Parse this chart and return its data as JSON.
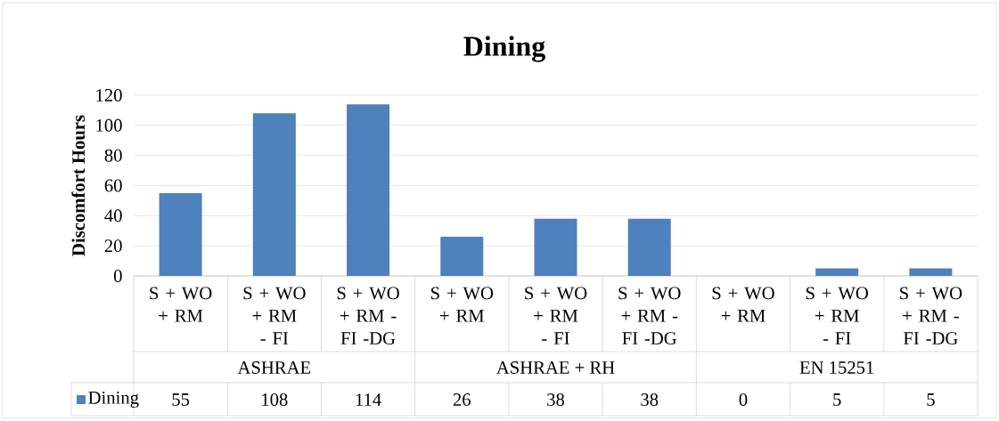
{
  "chart_data": {
    "type": "bar",
    "title": "Dining",
    "ylabel": "Discomfort Hours",
    "categories": [
      "S + WO + RM",
      "S + WO + RM - FI",
      "S + WO + RM - FI -DG",
      "S + WO + RM",
      "S + WO + RM - FI",
      "S + WO + RM - FI -DG",
      "S + WO + RM",
      "S + WO + RM - FI",
      "S + WO + RM - FI -DG"
    ],
    "series": [
      {
        "name": "Dining",
        "color": "#4f81bd",
        "values": [
          55,
          108,
          114,
          26,
          38,
          38,
          0,
          5,
          5
        ]
      }
    ],
    "annotations": [
      "ASHRAE",
      "ASHRAE + RH",
      "EN 15251"
    ],
    "ylim": [
      0,
      120
    ],
    "yticks": [
      0,
      20,
      40,
      60,
      80,
      100,
      120
    ],
    "grid": "y",
    "legend": "bottom",
    "data_labels": true
  }
}
